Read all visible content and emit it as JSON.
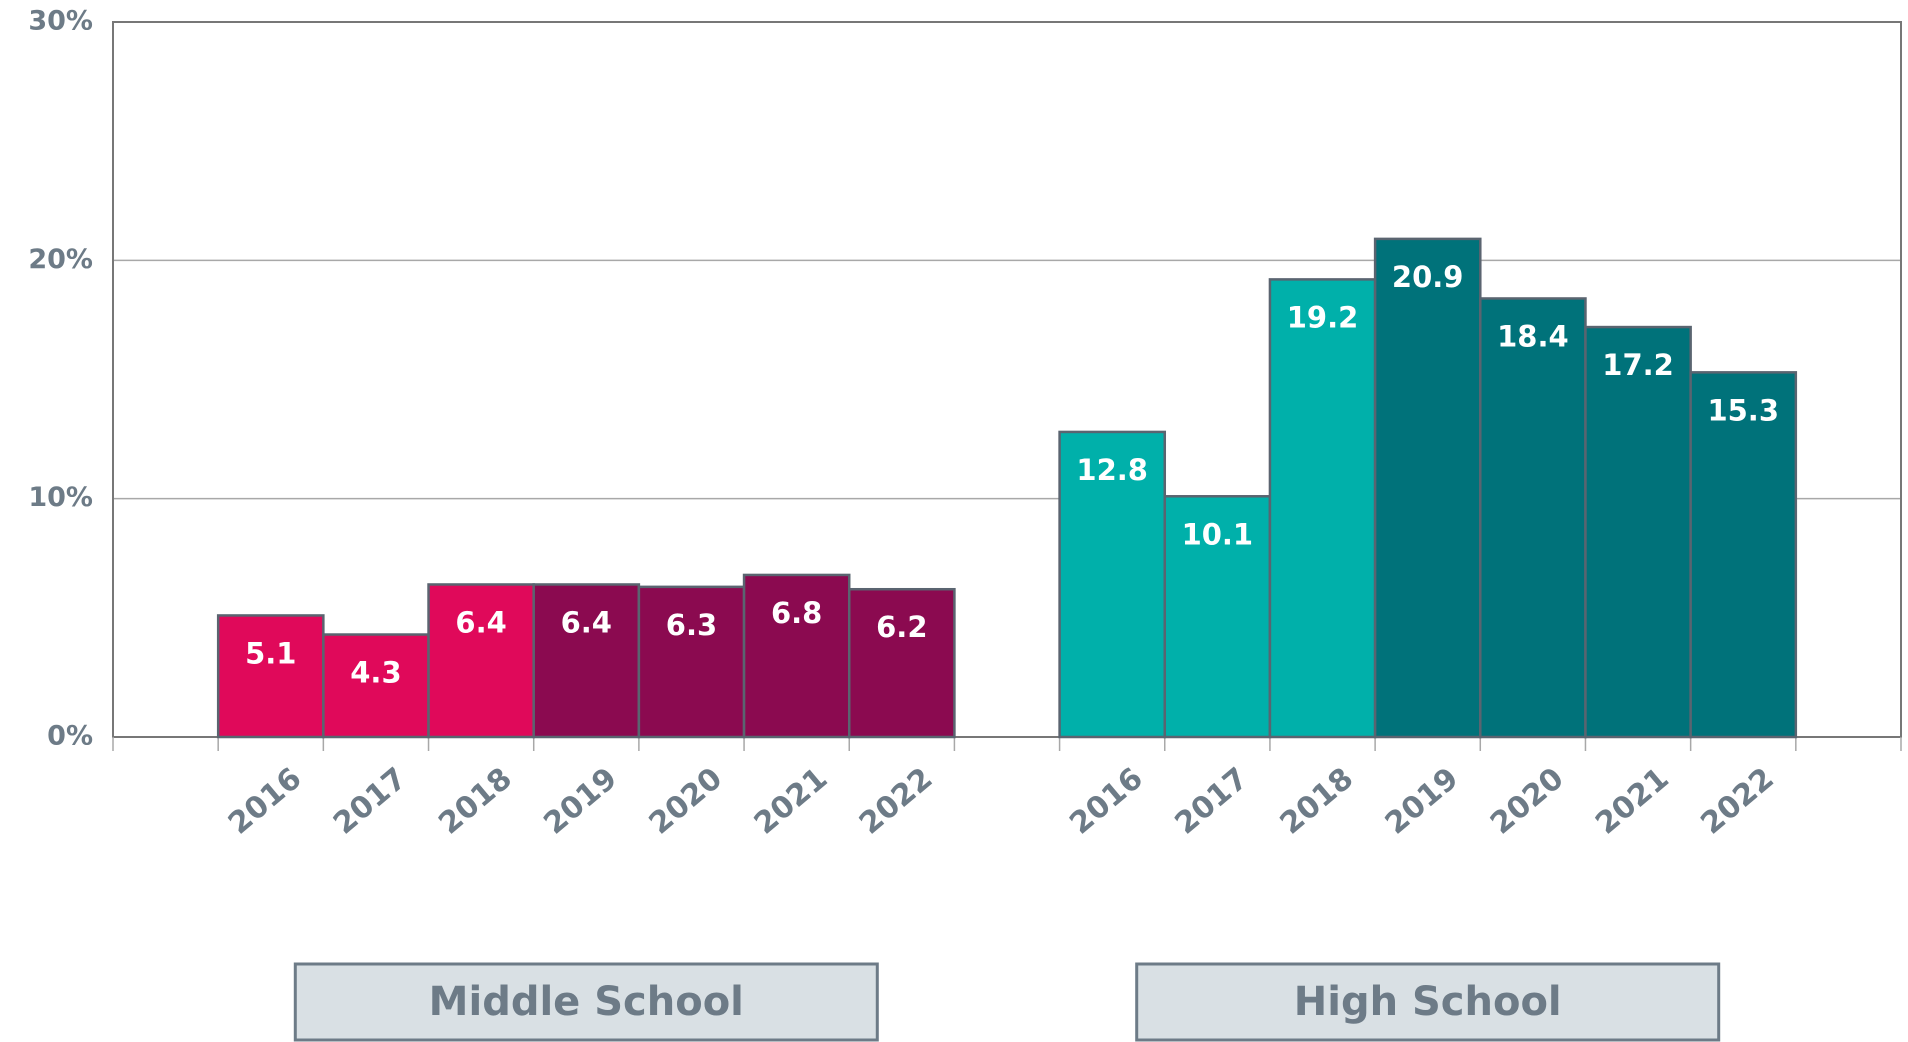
{
  "chart_data": {
    "type": "bar",
    "ylim": [
      0,
      30
    ],
    "yticks": [
      {
        "value": 0,
        "label": "0%"
      },
      {
        "value": 10,
        "label": "10%"
      },
      {
        "value": 20,
        "label": "20%"
      },
      {
        "value": 30,
        "label": "30%"
      }
    ],
    "grid": true,
    "groups": [
      {
        "name": "Middle School",
        "categories": [
          "2016",
          "2017",
          "2018",
          "2019",
          "2020",
          "2021",
          "2022"
        ],
        "values": [
          5.1,
          4.3,
          6.4,
          6.4,
          6.3,
          6.8,
          6.2
        ],
        "colors": [
          "#e0095a",
          "#e0095a",
          "#e0095a",
          "#8b0a50",
          "#8b0a50",
          "#8b0a50",
          "#8b0a50"
        ]
      },
      {
        "name": "High School",
        "categories": [
          "2016",
          "2017",
          "2018",
          "2019",
          "2020",
          "2021",
          "2022"
        ],
        "values": [
          12.8,
          10.1,
          19.2,
          20.9,
          18.4,
          17.2,
          15.3
        ],
        "colors": [
          "#00b0aa",
          "#00b0aa",
          "#00b0aa",
          "#00727a",
          "#00727a",
          "#00727a",
          "#00727a"
        ]
      }
    ]
  }
}
